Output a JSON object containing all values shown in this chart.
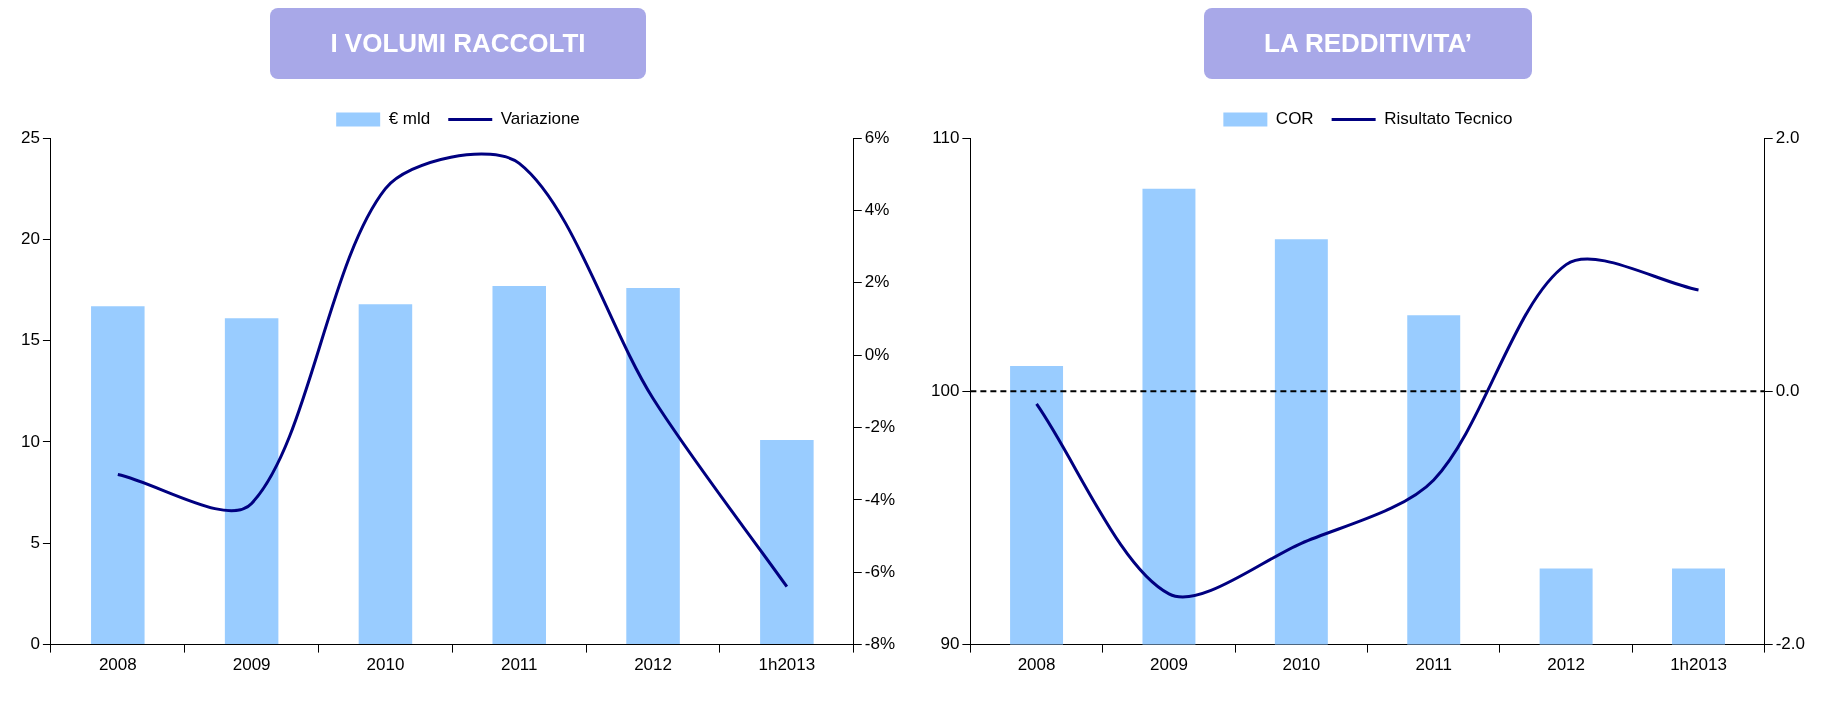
{
  "chart_data": [
    {
      "type": "bar",
      "title": "I VOLUMI RACCOLTI",
      "categories": [
        "2008",
        "2009",
        "2010",
        "2011",
        "2012",
        "1h2013"
      ],
      "series": [
        {
          "name": "€ mld",
          "color": "#99ccff",
          "values": [
            16.7,
            16.1,
            16.8,
            17.7,
            17.6,
            10.1
          ]
        },
        {
          "name": "Variazione",
          "type": "line",
          "axis": "y2",
          "color": "#000080",
          "values": [
            -3.3,
            -4.1,
            4.6,
            5.3,
            -1.2,
            -6.4
          ]
        }
      ],
      "ylim": [
        0,
        25
      ],
      "yticks": [
        0,
        5,
        10,
        15,
        20,
        25
      ],
      "y2lim": [
        -8,
        6
      ],
      "y2ticks": [
        {
          "value": -8,
          "label": "-8%"
        },
        {
          "value": -6,
          "label": "-6%"
        },
        {
          "value": -4,
          "label": "-4%"
        },
        {
          "value": -2,
          "label": "-2%"
        },
        {
          "value": 0,
          "label": "0%"
        },
        {
          "value": 2,
          "label": "2%"
        },
        {
          "value": 4,
          "label": "4%"
        },
        {
          "value": 6,
          "label": "6%"
        }
      ],
      "grid": false,
      "legend": "top",
      "marker": "none"
    },
    {
      "type": "bar",
      "title": "LA REDDITIVITA’",
      "categories": [
        "2008",
        "2009",
        "2010",
        "2011",
        "2012",
        "1h2013"
      ],
      "series": [
        {
          "name": "COR",
          "color": "#99ccff",
          "values": [
            101.0,
            108.0,
            106.0,
            103.0,
            93.0,
            93.0
          ]
        },
        {
          "name": "Risultato Tecnico",
          "type": "line",
          "axis": "y2",
          "color": "#000080",
          "values": [
            -0.1,
            -1.6,
            -1.2,
            -0.7,
            1.0,
            0.8
          ]
        }
      ],
      "ylim": [
        90,
        110
      ],
      "yticks": [
        90,
        100,
        110
      ],
      "y2lim": [
        -2,
        2
      ],
      "y2ticks": [
        {
          "value": -2,
          "label": "-2.0"
        },
        {
          "value": 0,
          "label": "0.0"
        },
        {
          "value": 2,
          "label": "2.0"
        }
      ],
      "ref_lines": [
        {
          "axis": "y",
          "value": 100,
          "color": "#000000",
          "line_style": "dashed"
        }
      ],
      "grid": false,
      "legend": "top",
      "marker": "none"
    }
  ]
}
